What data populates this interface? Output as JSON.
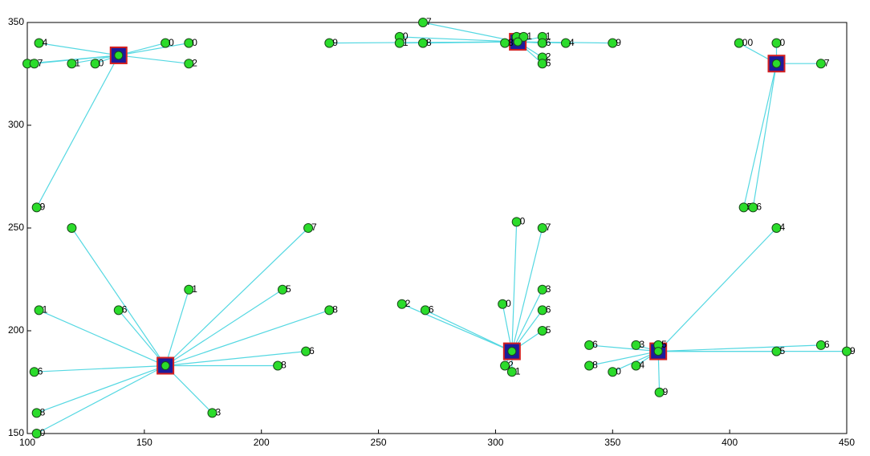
{
  "chart_data": {
    "type": "scatter",
    "xlim": [
      100,
      450
    ],
    "xticks": [
      100,
      150,
      200,
      250,
      300,
      350,
      400,
      450
    ],
    "ylim": [
      150,
      350
    ],
    "yticks": [
      150,
      200,
      250,
      300,
      350
    ],
    "point_color": "#2bdc2b",
    "link_color": "#55d8e2",
    "center_color": "#1c1c9c",
    "center_edge": "#d42020",
    "series": [
      {
        "center_x": 139,
        "center_y": 334,
        "x": [
          105,
          100,
          103,
          119,
          129,
          159,
          169,
          169,
          104
        ],
        "y": [
          340,
          330,
          330,
          330,
          330,
          340,
          340,
          330,
          260
        ],
        "labels": [
          "4",
          "7",
          "7",
          "1",
          "0",
          "0",
          "0",
          "2",
          "9"
        ]
      },
      {
        "center_x": 309.5,
        "center_y": 340.6,
        "x": [
          229,
          259,
          259,
          269,
          269,
          304,
          309,
          312,
          320,
          320,
          320,
          320,
          330,
          350
        ],
        "y": [
          340,
          343,
          340,
          340,
          350,
          340,
          343,
          343,
          343,
          340,
          333,
          330,
          340,
          340
        ],
        "labels": [
          "9",
          "0",
          "1",
          "8",
          "7",
          "8",
          "2",
          "1",
          "1",
          "6",
          "2",
          "6",
          "4",
          "9"
        ]
      },
      {
        "center_x": 420,
        "center_y": 330,
        "x": [
          404,
          420,
          439,
          406,
          410
        ],
        "y": [
          340,
          340,
          330,
          260,
          260
        ],
        "labels": [
          "00",
          "0",
          "7",
          "5",
          "6"
        ]
      },
      {
        "center_x": 159,
        "center_y": 183,
        "x": [
          105,
          119,
          139,
          169,
          220,
          209,
          229,
          219,
          207,
          179,
          103,
          104,
          104
        ],
        "y": [
          210,
          250,
          210,
          220,
          250,
          220,
          210,
          190,
          183,
          160,
          180,
          160,
          150
        ],
        "labels": [
          "1",
          null,
          "6",
          "1",
          "7",
          "5",
          "8",
          "6",
          "8",
          "3",
          "6",
          "8",
          "0"
        ]
      },
      {
        "center_x": 307,
        "center_y": 190,
        "x": [
          260,
          270,
          303,
          309,
          320,
          320,
          320,
          320,
          304,
          307
        ],
        "y": [
          213,
          210,
          213,
          253,
          250,
          220,
          210,
          200,
          183,
          180
        ],
        "labels": [
          "2",
          "6",
          "0",
          "0",
          "7",
          "3",
          "6",
          "5",
          "2",
          "1"
        ]
      },
      {
        "center_x": 369.5,
        "center_y": 190,
        "x": [
          340,
          340,
          350,
          360,
          360,
          369.5,
          420,
          420,
          439,
          450,
          370
        ],
        "y": [
          193,
          183,
          180,
          183,
          193,
          193,
          250,
          190,
          193,
          190,
          170
        ],
        "labels": [
          "6",
          "8",
          "0",
          "4",
          "3",
          "5",
          "4",
          "5",
          "6",
          "9",
          "9"
        ]
      }
    ]
  }
}
